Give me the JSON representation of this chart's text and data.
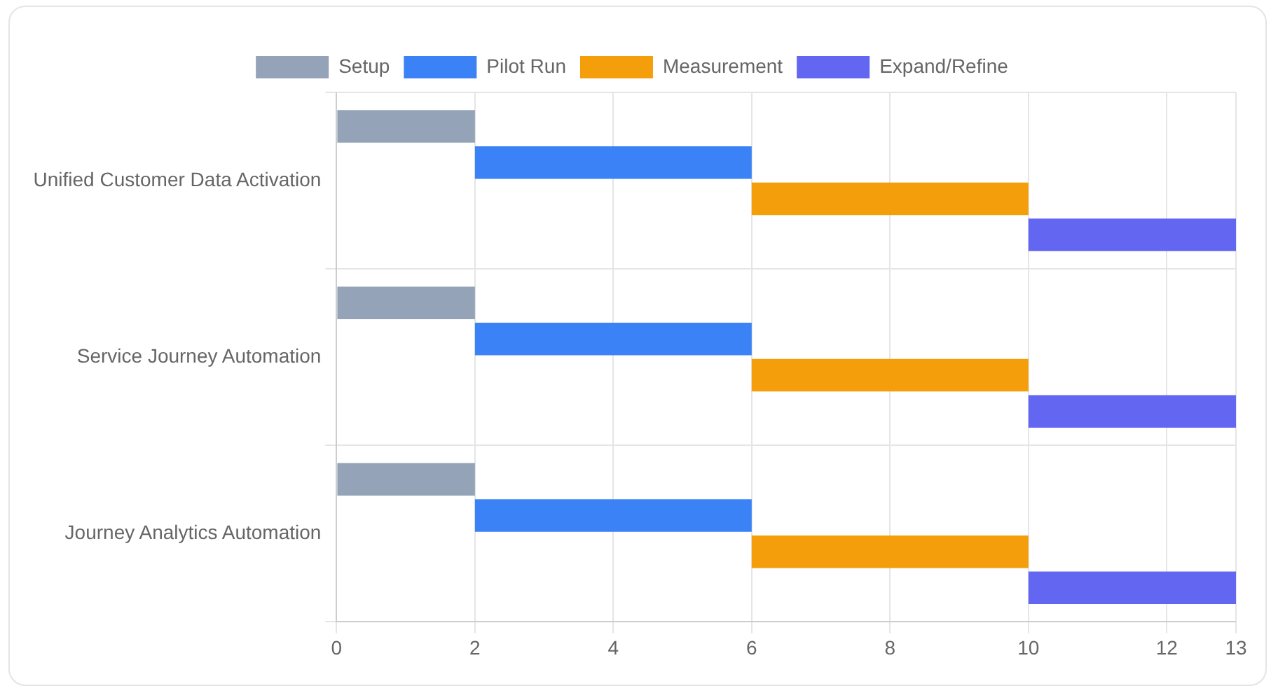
{
  "chart_data": {
    "type": "bar",
    "orientation": "horizontal",
    "categories": [
      "Unified Customer Data Activation",
      "Service Journey Automation",
      "Journey Analytics Automation"
    ],
    "series": [
      {
        "name": "Setup",
        "color": "#94a3b8",
        "base": [
          0,
          0,
          0
        ],
        "values": [
          2,
          2,
          2
        ]
      },
      {
        "name": "Pilot Run",
        "color": "#3b82f6",
        "base": [
          2,
          2,
          2
        ],
        "values": [
          4,
          4,
          4
        ]
      },
      {
        "name": "Measurement",
        "color": "#f59e0b",
        "base": [
          6,
          6,
          6
        ],
        "values": [
          4,
          4,
          4
        ]
      },
      {
        "name": "Expand/Refine",
        "color": "#6366f1",
        "base": [
          10,
          10,
          10
        ],
        "values": [
          3,
          3,
          3
        ]
      }
    ],
    "xlim": [
      0,
      13
    ],
    "xticks": [
      0,
      2,
      4,
      6,
      8,
      10,
      12,
      13
    ],
    "grid": true,
    "legend": "top"
  }
}
